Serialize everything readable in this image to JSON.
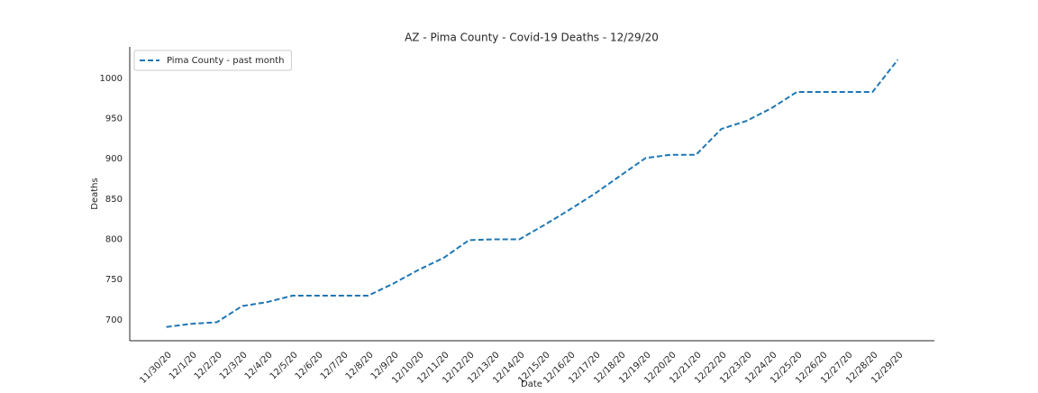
{
  "chart_data": {
    "type": "line",
    "title": "AZ - Pima County - Covid-19 Deaths - 12/29/20",
    "x_label": "Date",
    "y_label": "Deaths",
    "categories": [
      "11/30/20",
      "12/1/20",
      "12/2/20",
      "12/3/20",
      "12/4/20",
      "12/5/20",
      "12/6/20",
      "12/7/20",
      "12/8/20",
      "12/9/20",
      "12/10/20",
      "12/11/20",
      "12/12/20",
      "12/13/20",
      "12/14/20",
      "12/15/20",
      "12/16/20",
      "12/17/20",
      "12/18/20",
      "12/19/20",
      "12/20/20",
      "12/21/20",
      "12/22/20",
      "12/23/20",
      "12/24/20",
      "12/25/20",
      "12/26/20",
      "12/27/20",
      "12/28/20",
      "12/29/20"
    ],
    "series": [
      {
        "name": "Pima County - past month",
        "color": "#1f77b4",
        "dash": true,
        "values": [
          691,
          695,
          697,
          717,
          722,
          730,
          730,
          730,
          730,
          745,
          762,
          777,
          799,
          800,
          800,
          818,
          837,
          857,
          879,
          901,
          905,
          905,
          937,
          947,
          963,
          983,
          983,
          983,
          983,
          1023
        ]
      }
    ],
    "ylim": [
      674,
      1039
    ],
    "yticks": [
      700,
      750,
      800,
      850,
      900,
      950,
      1000
    ],
    "grid": false,
    "legend": "upper left"
  }
}
